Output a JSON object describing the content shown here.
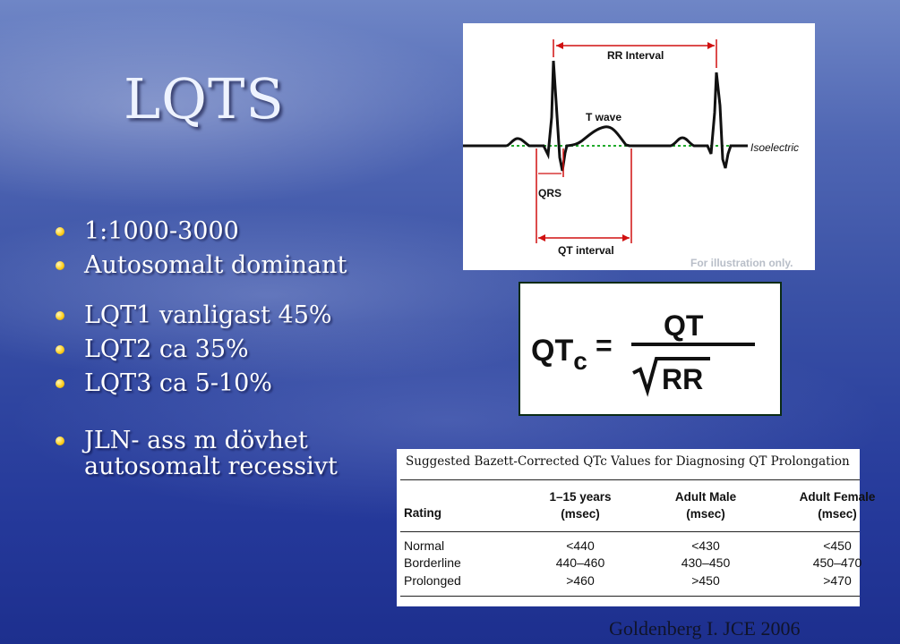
{
  "slide": {
    "title": "LQTS",
    "bullets": [
      {
        "text": "1:1000-3000"
      },
      {
        "text": "Autosomalt dominant"
      },
      {
        "text": "LQT1 vanligast 45%"
      },
      {
        "text": "LQT2 ca 35%"
      },
      {
        "text": "LQT3 ca 5-10%"
      },
      {
        "line1": "JLN- ass m dövhet",
        "line2": "autosomalt recessivt"
      }
    ],
    "citation": "Goldenberg I. JCE 2006"
  },
  "ecg_figure": {
    "labels": {
      "rr": "RR Interval",
      "twave": "T wave",
      "isoelectric": "Isoelectric",
      "qrs": "QRS",
      "qt": "QT interval",
      "note": "For illustration only."
    },
    "colors": {
      "annotation": "#d01010",
      "baseline": "#1faa2a",
      "trace": "#111111"
    }
  },
  "formula": {
    "lhs": "QT",
    "lhs_sub": "c",
    "equals": "=",
    "numerator": "QT",
    "denominator": "RR"
  },
  "table": {
    "caption": "Suggested Bazett-Corrected QTc Values for Diagnosing QT Prolongation",
    "headers": {
      "rating": "Rating",
      "col1_line1": "1–15 years",
      "col1_line2": "(msec)",
      "col2_line1": "Adult Male",
      "col2_line2": "(msec)",
      "col3_line1": "Adult Female",
      "col3_line2": "(msec)"
    },
    "rows": [
      {
        "rating": "Normal",
        "c1": "<440",
        "c2": "<430",
        "c3": "<450"
      },
      {
        "rating": "Borderline",
        "c1": "440–460",
        "c2": "430–450",
        "c3": "450–470"
      },
      {
        "rating": "Prolonged",
        "c1": ">460",
        "c2": ">450",
        "c3": ">470"
      }
    ]
  }
}
